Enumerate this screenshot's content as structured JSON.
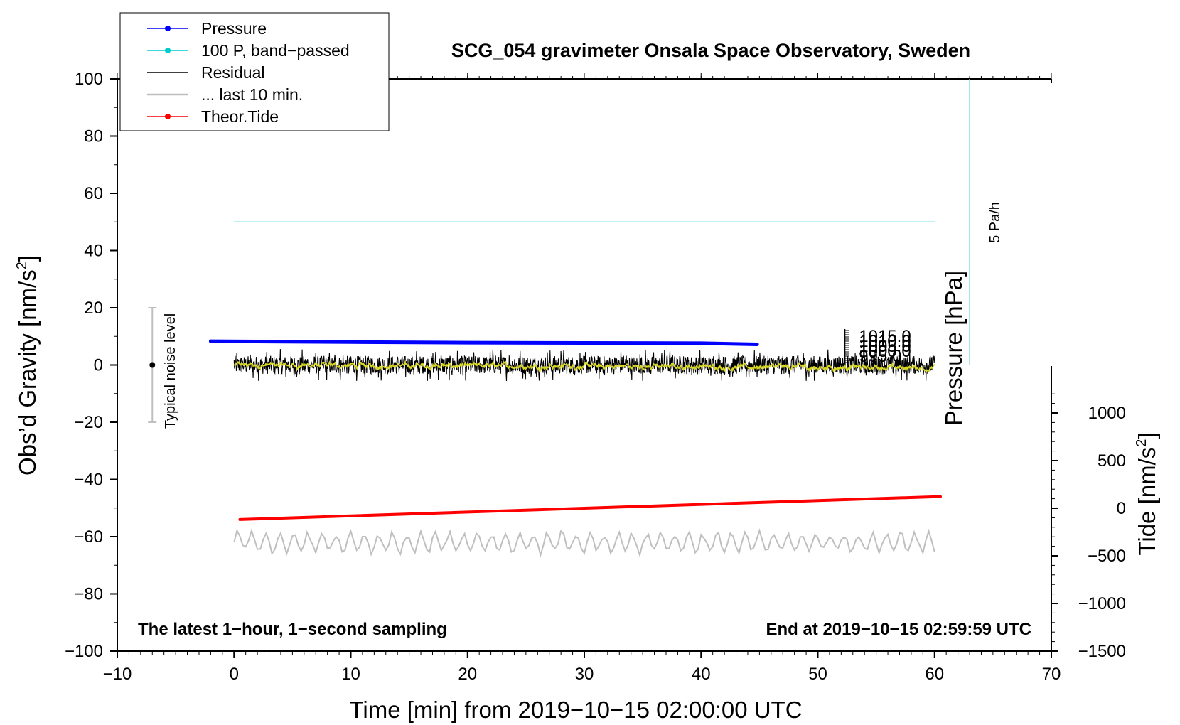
{
  "chart_data": {
    "type": "line",
    "title": "SCG_054 gravimeter Onsala Space Observatory, Sweden",
    "xlabel": "Time [min] from 2019−10−15 02:00:00 UTC",
    "ylabel": "Obs’d Gravity [nm/s",
    "ylabel_sup": "2",
    "ylabel_end": "]",
    "tide_label": "Tide [nm/s",
    "tide_label_sup": "2",
    "tide_label_end": "]",
    "pressure_label": "Pressure [hPa]",
    "rate_label": "5 Pa/h",
    "noise_label": "Typical noise level",
    "footer_left": "The latest 1−hour, 1−second sampling",
    "footer_right": "End at 2019−10−15 02:59:59 UTC",
    "xlim": [
      -10,
      70
    ],
    "ylim": [
      -100,
      100
    ],
    "tide_ylim": [
      -1500,
      1500
    ],
    "x_ticks": [
      "−10",
      "0",
      "10",
      "20",
      "30",
      "40",
      "50",
      "60",
      "70"
    ],
    "x_tick_values": [
      -10,
      0,
      10,
      20,
      30,
      40,
      50,
      60,
      70
    ],
    "y_ticks": [
      "100",
      "80",
      "60",
      "40",
      "20",
      "0",
      "−20",
      "−40",
      "−60",
      "−80",
      "−100"
    ],
    "y_tick_values": [
      100,
      80,
      60,
      40,
      20,
      0,
      -20,
      -40,
      -60,
      -80,
      -100
    ],
    "tide_ticks": [
      "1000",
      "500",
      "0",
      "−500",
      "−1000",
      "−1500"
    ],
    "tide_tick_values": [
      1000,
      500,
      0,
      -500,
      -1000,
      -1500
    ],
    "pressure_ticks": [
      "1015.0",
      "1010.0",
      "1005.0",
      "1000.0",
      "995.0"
    ],
    "legend": [
      {
        "name": "Pressure",
        "color": "#0000ff",
        "marker": true
      },
      {
        "name": "100 P, band−passed",
        "color": "#00cccc",
        "marker": true
      },
      {
        "name": "Residual",
        "color": "#000000",
        "marker": false
      },
      {
        "name": "... last 10 min.",
        "color": "#bfbfbf",
        "marker": false
      },
      {
        "name": "Theor.Tide",
        "color": "#ff0000",
        "marker": true
      }
    ],
    "series": [
      {
        "name": "Pressure",
        "color": "#0000ff",
        "x": [
          -2,
          10,
          20,
          30,
          40,
          44.8
        ],
        "y": [
          8.3,
          8.0,
          7.8,
          7.7,
          7.6,
          7.2
        ]
      },
      {
        "name": "100 P, band−passed",
        "color": "#00cccc",
        "x": [
          0,
          60
        ],
        "y": [
          50,
          50
        ]
      },
      {
        "name": "Residual",
        "color": "#000000",
        "x_range": [
          0,
          60
        ],
        "y_center": 0,
        "amplitude": 4
      },
      {
        "name": "... last 10 min.",
        "color": "#bfbfbf",
        "x_range": [
          0,
          60
        ],
        "y_center": -62,
        "amplitude": 3
      },
      {
        "name": "Theor.Tide",
        "color": "#ff0000",
        "x": [
          0.5,
          60.5
        ],
        "y": [
          -54,
          -46
        ]
      }
    ],
    "noise_bar": {
      "x": -7,
      "y_low": -20,
      "y_high": 20,
      "y_mid": 0
    },
    "rate_bar": {
      "x": 63,
      "y_low": 0,
      "y_high": 100
    }
  }
}
